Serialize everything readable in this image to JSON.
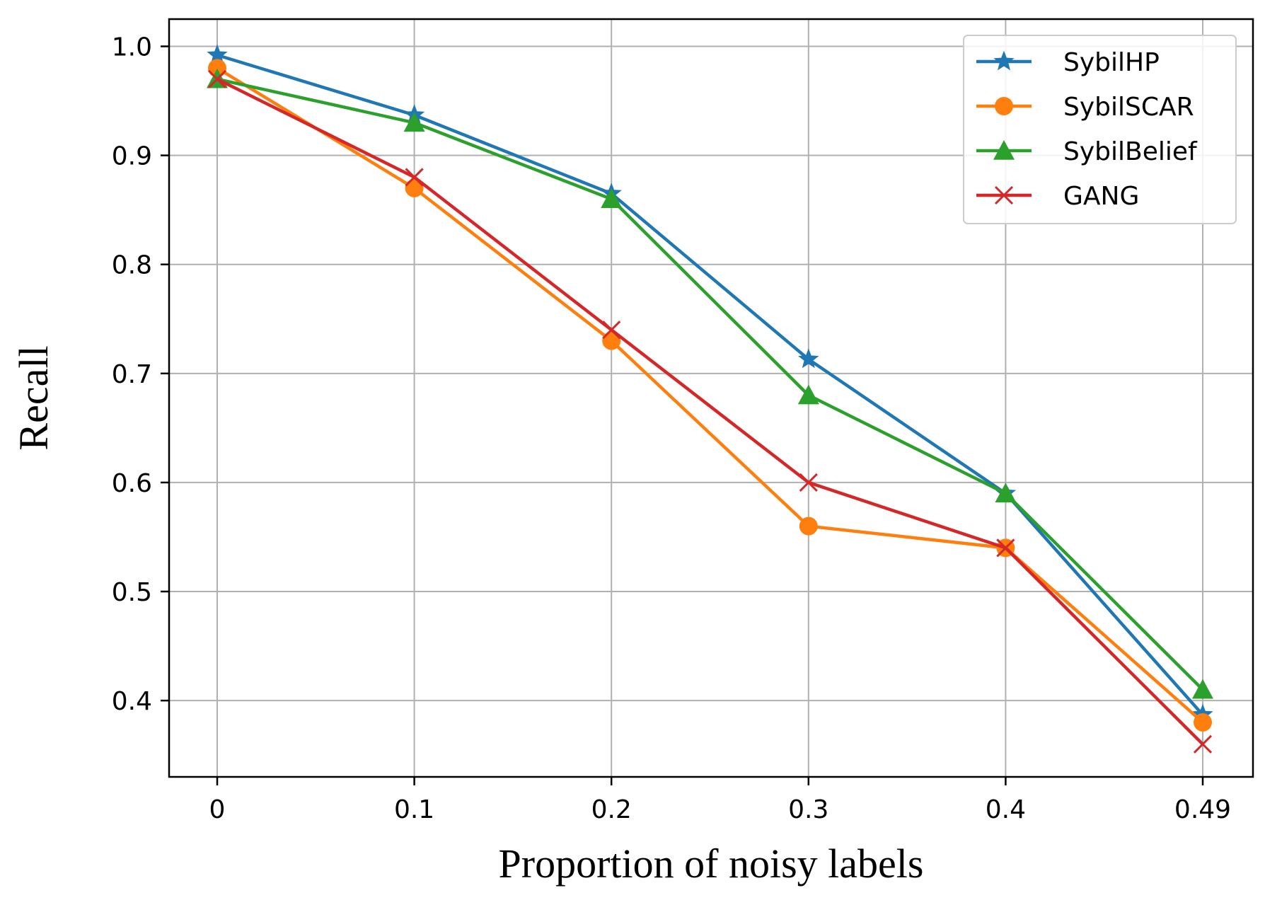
{
  "chart_data": {
    "type": "line",
    "title": "",
    "xlabel": "Proportion of noisy labels",
    "ylabel": "Recall",
    "categories": [
      "0",
      "0.1",
      "0.2",
      "0.3",
      "0.4",
      "0.49"
    ],
    "yticks": [
      "0.4",
      "0.5",
      "0.6",
      "0.7",
      "0.8",
      "0.9",
      "1.0"
    ],
    "ylim": [
      0.33,
      1.025
    ],
    "grid": true,
    "legend_position": "top-right",
    "series": [
      {
        "name": "SybilHP",
        "color": "#1f77b4",
        "marker": "star",
        "values": [
          0.992,
          0.937,
          0.865,
          0.713,
          0.59,
          0.387
        ]
      },
      {
        "name": "SybilSCAR",
        "color": "#ff7f0e",
        "marker": "circle",
        "values": [
          0.98,
          0.87,
          0.73,
          0.56,
          0.54,
          0.38
        ]
      },
      {
        "name": "SybilBelief",
        "color": "#2ca02c",
        "marker": "triangle",
        "values": [
          0.97,
          0.93,
          0.86,
          0.68,
          0.59,
          0.41
        ]
      },
      {
        "name": "GANG",
        "color": "#d62728",
        "marker": "x",
        "values": [
          0.97,
          0.88,
          0.74,
          0.6,
          0.54,
          0.36
        ]
      }
    ]
  }
}
